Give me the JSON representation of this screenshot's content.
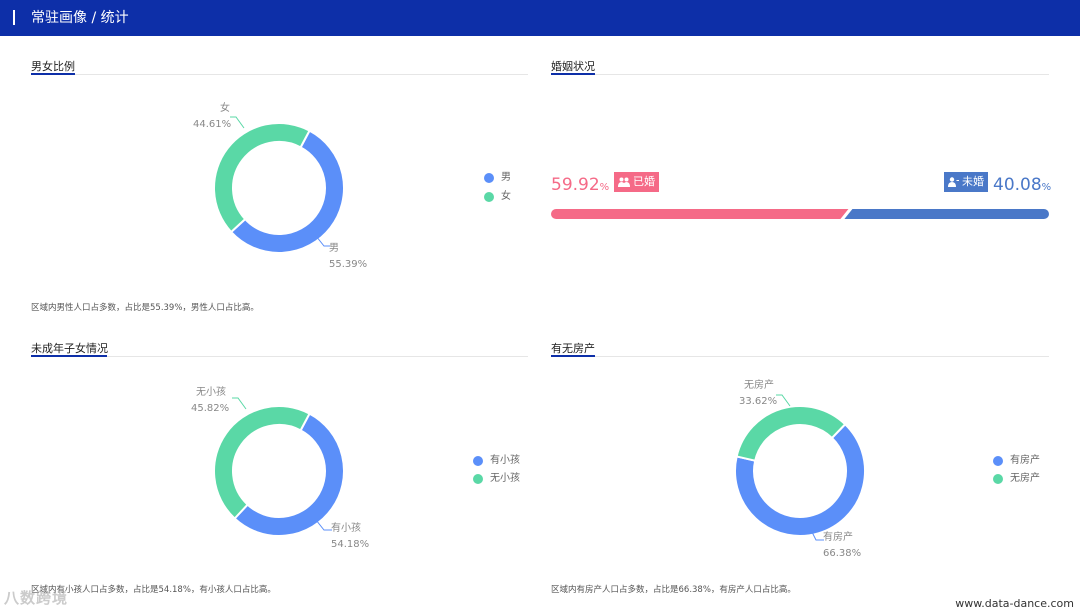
{
  "header": {
    "title": "常驻画像 / 统计"
  },
  "sections": {
    "gender": {
      "title": "男女比例",
      "slices": [
        {
          "name": "男",
          "percent": "55.39%",
          "value": 55.39,
          "color": "#5b8ff9"
        },
        {
          "name": "女",
          "percent": "44.61%",
          "value": 44.61,
          "color": "#5ad8a6"
        }
      ],
      "legend": [
        "男",
        "女"
      ],
      "note": "区域内男性人口占多数，占比是55.39%，男性人口占比高。"
    },
    "marriage": {
      "title": "婚姻状况",
      "married": {
        "percent": "59.92",
        "unit": "%",
        "label": "已婚",
        "value": 59.92,
        "color": "#f56a87"
      },
      "single": {
        "percent": "40.08",
        "unit": "%",
        "label": "未婚",
        "value": 40.08,
        "color": "#4a78c8"
      }
    },
    "children": {
      "title": "未成年子女情况",
      "slices": [
        {
          "name": "有小孩",
          "percent": "54.18%",
          "value": 54.18,
          "color": "#5b8ff9"
        },
        {
          "name": "无小孩",
          "percent": "45.82%",
          "value": 45.82,
          "color": "#5ad8a6"
        }
      ],
      "legend": [
        "有小孩",
        "无小孩"
      ],
      "note": "区域内有小孩人口占多数，占比是54.18%，有小孩人口占比高。"
    },
    "house": {
      "title": "有无房产",
      "slices": [
        {
          "name": "有房产",
          "percent": "66.38%",
          "value": 66.38,
          "color": "#5b8ff9"
        },
        {
          "name": "无房产",
          "percent": "33.62%",
          "value": 33.62,
          "color": "#5ad8a6"
        }
      ],
      "legend": [
        "有房产",
        "无房产"
      ],
      "note": "区域内有房产人口占多数，占比是66.38%，有房产人口占比高。"
    }
  },
  "footer": {
    "watermark": "www.data-dance.com",
    "logo_text": "八数跨境"
  },
  "chart_data": [
    {
      "type": "pie",
      "title": "男女比例",
      "categories": [
        "男",
        "女"
      ],
      "values": [
        55.39,
        44.61
      ]
    },
    {
      "type": "bar",
      "title": "婚姻状况",
      "categories": [
        "已婚",
        "未婚"
      ],
      "values": [
        59.92,
        40.08
      ]
    },
    {
      "type": "pie",
      "title": "未成年子女情况",
      "categories": [
        "有小孩",
        "无小孩"
      ],
      "values": [
        54.18,
        45.82
      ]
    },
    {
      "type": "pie",
      "title": "有无房产",
      "categories": [
        "有房产",
        "无房产"
      ],
      "values": [
        66.38,
        33.62
      ]
    }
  ]
}
